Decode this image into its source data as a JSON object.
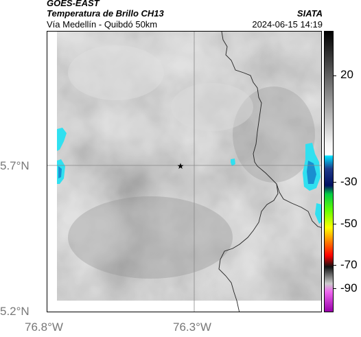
{
  "header": {
    "satellite": "GOES-EAST",
    "product": "Temperatura de Brillo CH13",
    "route": "Vía Medellín - Quibdó 50km",
    "organization": "SIATA",
    "datetime": "2024-06-15 14:19"
  },
  "map": {
    "lat_ticks": [
      "5.7°N",
      "5.2°N"
    ],
    "lon_ticks": [
      "76.8°W",
      "76.3°W"
    ],
    "marker_icon": "star-icon",
    "gridlines": true
  },
  "colorbar": {
    "ticks": [
      "20",
      "-30",
      "-50",
      "-70",
      "-90"
    ],
    "colors": [
      "#000000",
      "#ffffff",
      "#00bfff",
      "#1e3a8a",
      "#00cc44",
      "#ffff00",
      "#ff3300",
      "#222222",
      "#cc00cc"
    ]
  }
}
